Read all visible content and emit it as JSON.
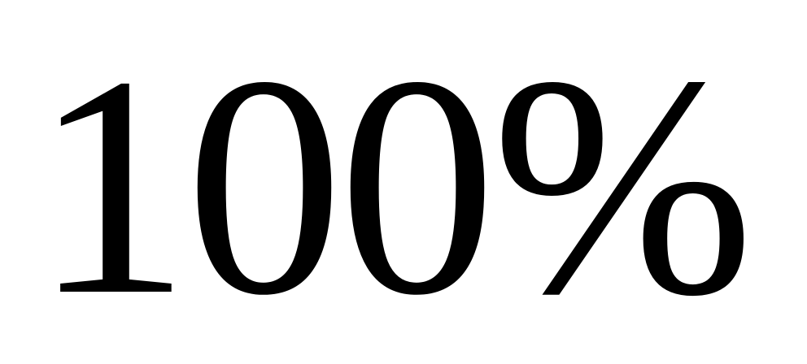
{
  "text": "100%",
  "colors": {
    "text": "#000000",
    "background": "#ffffff"
  }
}
